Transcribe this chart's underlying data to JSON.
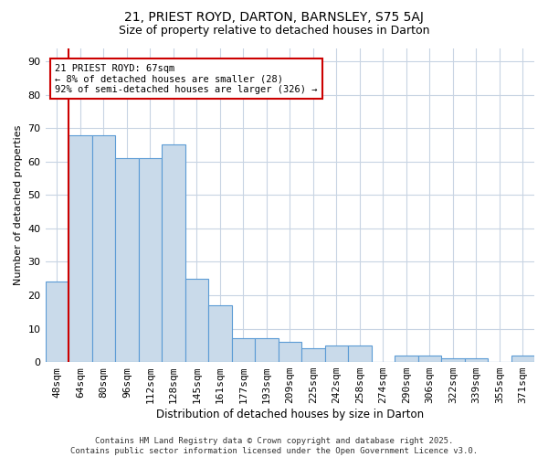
{
  "title1": "21, PRIEST ROYD, DARTON, BARNSLEY, S75 5AJ",
  "title2": "Size of property relative to detached houses in Darton",
  "xlabel": "Distribution of detached houses by size in Darton",
  "ylabel": "Number of detached properties",
  "categories": [
    "48sqm",
    "64sqm",
    "80sqm",
    "96sqm",
    "112sqm",
    "128sqm",
    "145sqm",
    "161sqm",
    "177sqm",
    "193sqm",
    "209sqm",
    "225sqm",
    "242sqm",
    "258sqm",
    "274sqm",
    "290sqm",
    "306sqm",
    "322sqm",
    "339sqm",
    "355sqm",
    "371sqm"
  ],
  "values": [
    24,
    68,
    68,
    61,
    61,
    65,
    25,
    17,
    7,
    7,
    6,
    4,
    5,
    5,
    0,
    2,
    2,
    1,
    1,
    0,
    2
  ],
  "bar_color": "#c9daea",
  "bar_edge_color": "#5b9bd5",
  "vline_x_index": 1,
  "vline_color": "#cc0000",
  "ylim": [
    0,
    94
  ],
  "yticks": [
    0,
    10,
    20,
    30,
    40,
    50,
    60,
    70,
    80,
    90
  ],
  "annotation_text": "21 PRIEST ROYD: 67sqm\n← 8% of detached houses are smaller (28)\n92% of semi-detached houses are larger (326) →",
  "annotation_box_color": "#cc0000",
  "footer": "Contains HM Land Registry data © Crown copyright and database right 2025.\nContains public sector information licensed under the Open Government Licence v3.0.",
  "background_color": "#ffffff",
  "grid_color": "#c8d4e3"
}
